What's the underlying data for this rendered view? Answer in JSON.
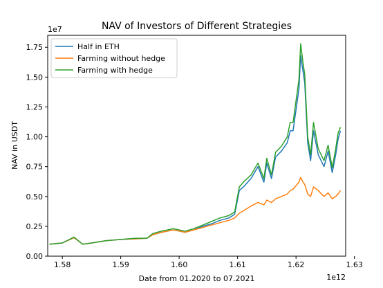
{
  "chart_data": {
    "type": "line",
    "title": "NAV of Investors of Different Strategies",
    "xlabel": "Date from 01.2020 to 07.2021",
    "ylabel": "NAV in USDT",
    "x_offset_text": "1e12",
    "y_offset_text": "1e7",
    "xlim": [
      1.5775,
      1.6285
    ],
    "ylim": [
      0,
      1.85
    ],
    "xticks": [
      1.58,
      1.59,
      1.6,
      1.61,
      1.62,
      1.63
    ],
    "xtick_labels": [
      "1.58",
      "1.59",
      "1.60",
      "1.61",
      "1.62",
      "1.63"
    ],
    "yticks": [
      0.0,
      0.25,
      0.5,
      0.75,
      1.0,
      1.25,
      1.5,
      1.75
    ],
    "ytick_labels": [
      "0.00",
      "0.25",
      "0.50",
      "0.75",
      "1.00",
      "1.25",
      "1.50",
      "1.75"
    ],
    "grid": false,
    "legend_position": "upper-left",
    "series": [
      {
        "name": "Half in ETH",
        "color": "#1f77b4",
        "x": [
          1.5778,
          1.58,
          1.582,
          1.5835,
          1.585,
          1.5875,
          1.59,
          1.5925,
          1.5945,
          1.5955,
          1.597,
          1.599,
          1.601,
          1.6025,
          1.604,
          1.6055,
          1.607,
          1.6085,
          1.6095,
          1.6103,
          1.611,
          1.6123,
          1.6135,
          1.6145,
          1.615,
          1.6158,
          1.6165,
          1.6175,
          1.6185,
          1.619,
          1.6195,
          1.6205,
          1.6208,
          1.6212,
          1.6215,
          1.622,
          1.6225,
          1.623,
          1.6238,
          1.6248,
          1.6255,
          1.6262,
          1.6268,
          1.6272,
          1.6276
        ],
        "y": [
          0.1,
          0.11,
          0.155,
          0.1,
          0.11,
          0.13,
          0.14,
          0.145,
          0.15,
          0.18,
          0.2,
          0.22,
          0.2,
          0.22,
          0.25,
          0.27,
          0.3,
          0.32,
          0.35,
          0.55,
          0.58,
          0.65,
          0.75,
          0.62,
          0.78,
          0.65,
          0.83,
          0.88,
          0.95,
          1.05,
          1.05,
          1.4,
          1.68,
          1.55,
          1.45,
          0.95,
          0.8,
          1.05,
          0.85,
          0.75,
          0.88,
          0.7,
          0.85,
          0.98,
          1.05
        ]
      },
      {
        "name": "Farming without hedge",
        "color": "#ff7f0e",
        "x": [
          1.5778,
          1.58,
          1.582,
          1.5835,
          1.585,
          1.5875,
          1.59,
          1.5925,
          1.5945,
          1.5955,
          1.597,
          1.599,
          1.601,
          1.6025,
          1.604,
          1.6055,
          1.607,
          1.6085,
          1.6095,
          1.6103,
          1.611,
          1.6123,
          1.6135,
          1.6145,
          1.615,
          1.6158,
          1.6165,
          1.6175,
          1.6185,
          1.619,
          1.6195,
          1.6205,
          1.6208,
          1.6212,
          1.6215,
          1.622,
          1.6225,
          1.623,
          1.6238,
          1.6248,
          1.6255,
          1.6262,
          1.6268,
          1.6272,
          1.6276
        ],
        "y": [
          0.1,
          0.11,
          0.155,
          0.1,
          0.11,
          0.13,
          0.14,
          0.145,
          0.15,
          0.18,
          0.2,
          0.22,
          0.2,
          0.22,
          0.24,
          0.26,
          0.28,
          0.3,
          0.32,
          0.36,
          0.38,
          0.42,
          0.45,
          0.43,
          0.47,
          0.45,
          0.48,
          0.5,
          0.52,
          0.55,
          0.56,
          0.62,
          0.66,
          0.62,
          0.6,
          0.52,
          0.5,
          0.58,
          0.55,
          0.5,
          0.53,
          0.48,
          0.5,
          0.52,
          0.55
        ]
      },
      {
        "name": "Farming with hedge",
        "color": "#2ca02c",
        "x": [
          1.5778,
          1.58,
          1.582,
          1.5835,
          1.585,
          1.5875,
          1.59,
          1.5925,
          1.5945,
          1.5955,
          1.597,
          1.599,
          1.601,
          1.6025,
          1.604,
          1.6055,
          1.607,
          1.6085,
          1.6095,
          1.6103,
          1.611,
          1.6123,
          1.6135,
          1.6145,
          1.615,
          1.6158,
          1.6165,
          1.6175,
          1.6185,
          1.619,
          1.6195,
          1.6205,
          1.6208,
          1.6212,
          1.6215,
          1.622,
          1.6225,
          1.623,
          1.6238,
          1.6248,
          1.6255,
          1.6262,
          1.6268,
          1.6272,
          1.6276
        ],
        "y": [
          0.1,
          0.11,
          0.16,
          0.1,
          0.11,
          0.13,
          0.14,
          0.15,
          0.15,
          0.19,
          0.21,
          0.23,
          0.21,
          0.23,
          0.26,
          0.29,
          0.32,
          0.34,
          0.37,
          0.58,
          0.62,
          0.68,
          0.78,
          0.65,
          0.82,
          0.68,
          0.87,
          0.92,
          1.0,
          1.12,
          1.12,
          1.48,
          1.78,
          1.62,
          1.52,
          1.0,
          0.85,
          1.12,
          0.9,
          0.8,
          0.93,
          0.74,
          0.9,
          1.03,
          1.08
        ]
      }
    ]
  }
}
